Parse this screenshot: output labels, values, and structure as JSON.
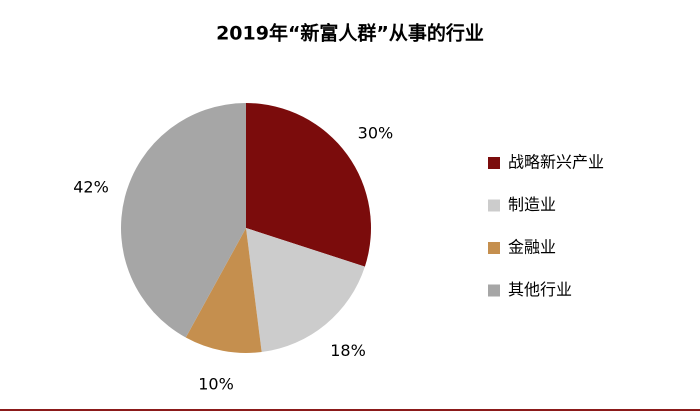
{
  "chart_data": {
    "type": "pie",
    "title": "2019年“新富人群”从事的行业",
    "categories": [
      "战略新兴产业",
      "制造业",
      "金融业",
      "其他行业"
    ],
    "values": [
      30,
      18,
      10,
      42
    ],
    "value_labels": [
      "30%",
      "18%",
      "10%",
      "42%"
    ],
    "colors": [
      "#7b0c0c",
      "#cccccc",
      "#c58f4e",
      "#a6a6a6"
    ],
    "legend": "right"
  }
}
